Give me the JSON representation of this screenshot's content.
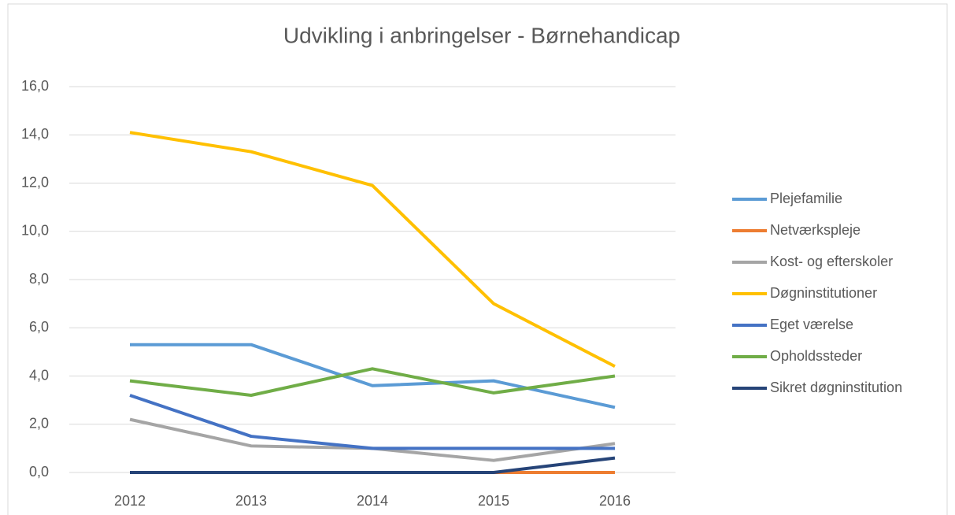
{
  "chart_data": {
    "type": "line",
    "title": "Udvikling i anbringelser - Børnehandicap",
    "categories": [
      "2012",
      "2013",
      "2014",
      "2015",
      "2016"
    ],
    "series": [
      {
        "name": "Plejefamilie",
        "color": "#5b9bd5",
        "values": [
          5.3,
          5.3,
          3.6,
          3.8,
          2.7
        ]
      },
      {
        "name": "Netværkspleje",
        "color": "#ed7d31",
        "values": [
          0,
          0,
          0,
          0,
          0
        ]
      },
      {
        "name": "Kost- og efterskoler",
        "color": "#a5a5a5",
        "values": [
          2.2,
          1.1,
          1.0,
          0.5,
          1.2
        ]
      },
      {
        "name": "Døgninstitutioner",
        "color": "#ffc000",
        "values": [
          14.1,
          13.3,
          11.9,
          7.0,
          4.4
        ]
      },
      {
        "name": "Eget værelse",
        "color": "#4472c4",
        "values": [
          3.2,
          1.5,
          1.0,
          1.0,
          1.0
        ]
      },
      {
        "name": "Opholdssteder",
        "color": "#70ad47",
        "values": [
          3.8,
          3.2,
          4.3,
          3.3,
          4.0
        ]
      },
      {
        "name": "Sikret døgninstitution",
        "color": "#264478",
        "values": [
          0,
          0,
          0,
          0,
          0.6
        ]
      }
    ],
    "ylim": [
      0,
      16
    ],
    "yticks": [
      {
        "value": 0,
        "label": "0,0"
      },
      {
        "value": 2,
        "label": "2,0"
      },
      {
        "value": 4,
        "label": "4,0"
      },
      {
        "value": 6,
        "label": "6,0"
      },
      {
        "value": 8,
        "label": "8,0"
      },
      {
        "value": 10,
        "label": "10,0"
      },
      {
        "value": 12,
        "label": "12,0"
      },
      {
        "value": 14,
        "label": "14,0"
      },
      {
        "value": 16,
        "label": "16,0"
      }
    ],
    "grid": true,
    "legend": "right"
  }
}
